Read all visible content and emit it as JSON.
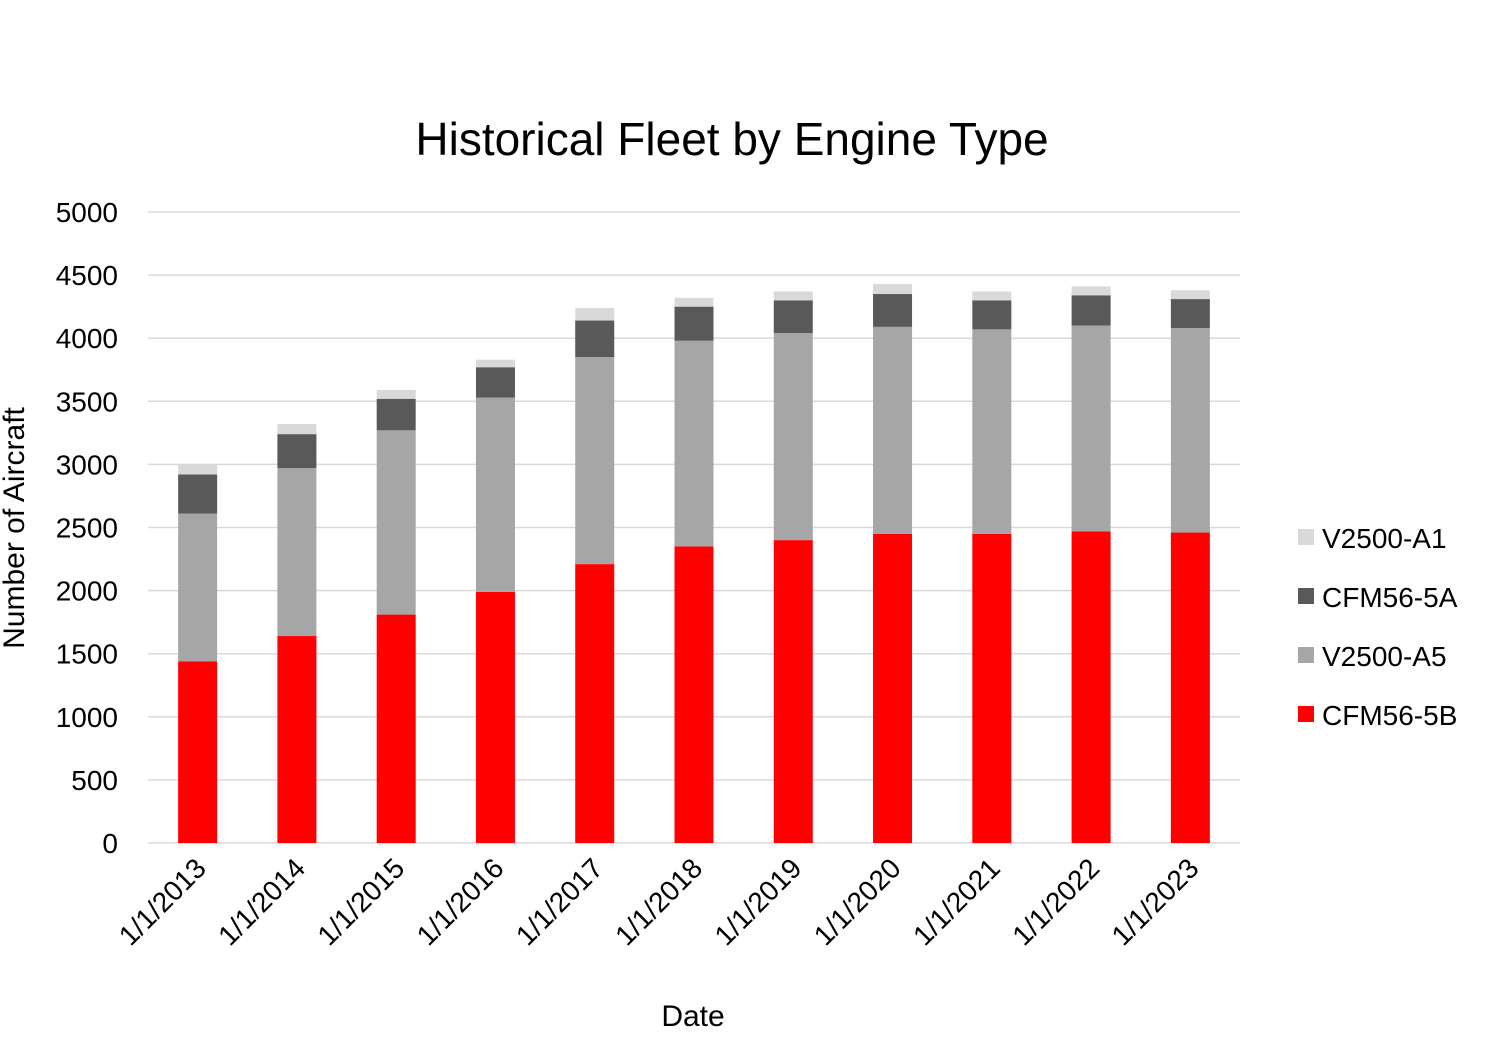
{
  "chart_data": {
    "type": "bar",
    "stacked": true,
    "title": "Historical Fleet by Engine Type",
    "xlabel": "Date",
    "ylabel": "Number of Aircraft",
    "ylim": [
      0,
      5000
    ],
    "yticks": [
      0,
      500,
      1000,
      1500,
      2000,
      2500,
      3000,
      3500,
      4000,
      4500,
      5000
    ],
    "grid": true,
    "legend_position": "right",
    "categories": [
      "1/1/2013",
      "1/1/2014",
      "1/1/2015",
      "1/1/2016",
      "1/1/2017",
      "1/1/2018",
      "1/1/2019",
      "1/1/2020",
      "1/1/2021",
      "1/1/2022",
      "1/1/2023"
    ],
    "series": [
      {
        "name": "CFM56-5B",
        "color": "#ff0000",
        "values": [
          1440,
          1640,
          1810,
          1990,
          2210,
          2350,
          2400,
          2450,
          2450,
          2470,
          2460
        ]
      },
      {
        "name": "V2500-A5",
        "color": "#a6a6a6",
        "values": [
          1170,
          1330,
          1460,
          1540,
          1640,
          1630,
          1640,
          1640,
          1620,
          1630,
          1620
        ]
      },
      {
        "name": "CFM56-5A",
        "color": "#595959",
        "values": [
          310,
          270,
          250,
          240,
          290,
          270,
          260,
          260,
          230,
          240,
          230
        ]
      },
      {
        "name": "V2500-A1",
        "color": "#d9d9d9",
        "values": [
          80,
          80,
          70,
          60,
          100,
          70,
          70,
          80,
          70,
          70,
          70
        ]
      }
    ],
    "legend_order": [
      "V2500-A1",
      "CFM56-5A",
      "V2500-A5",
      "CFM56-5B"
    ]
  }
}
